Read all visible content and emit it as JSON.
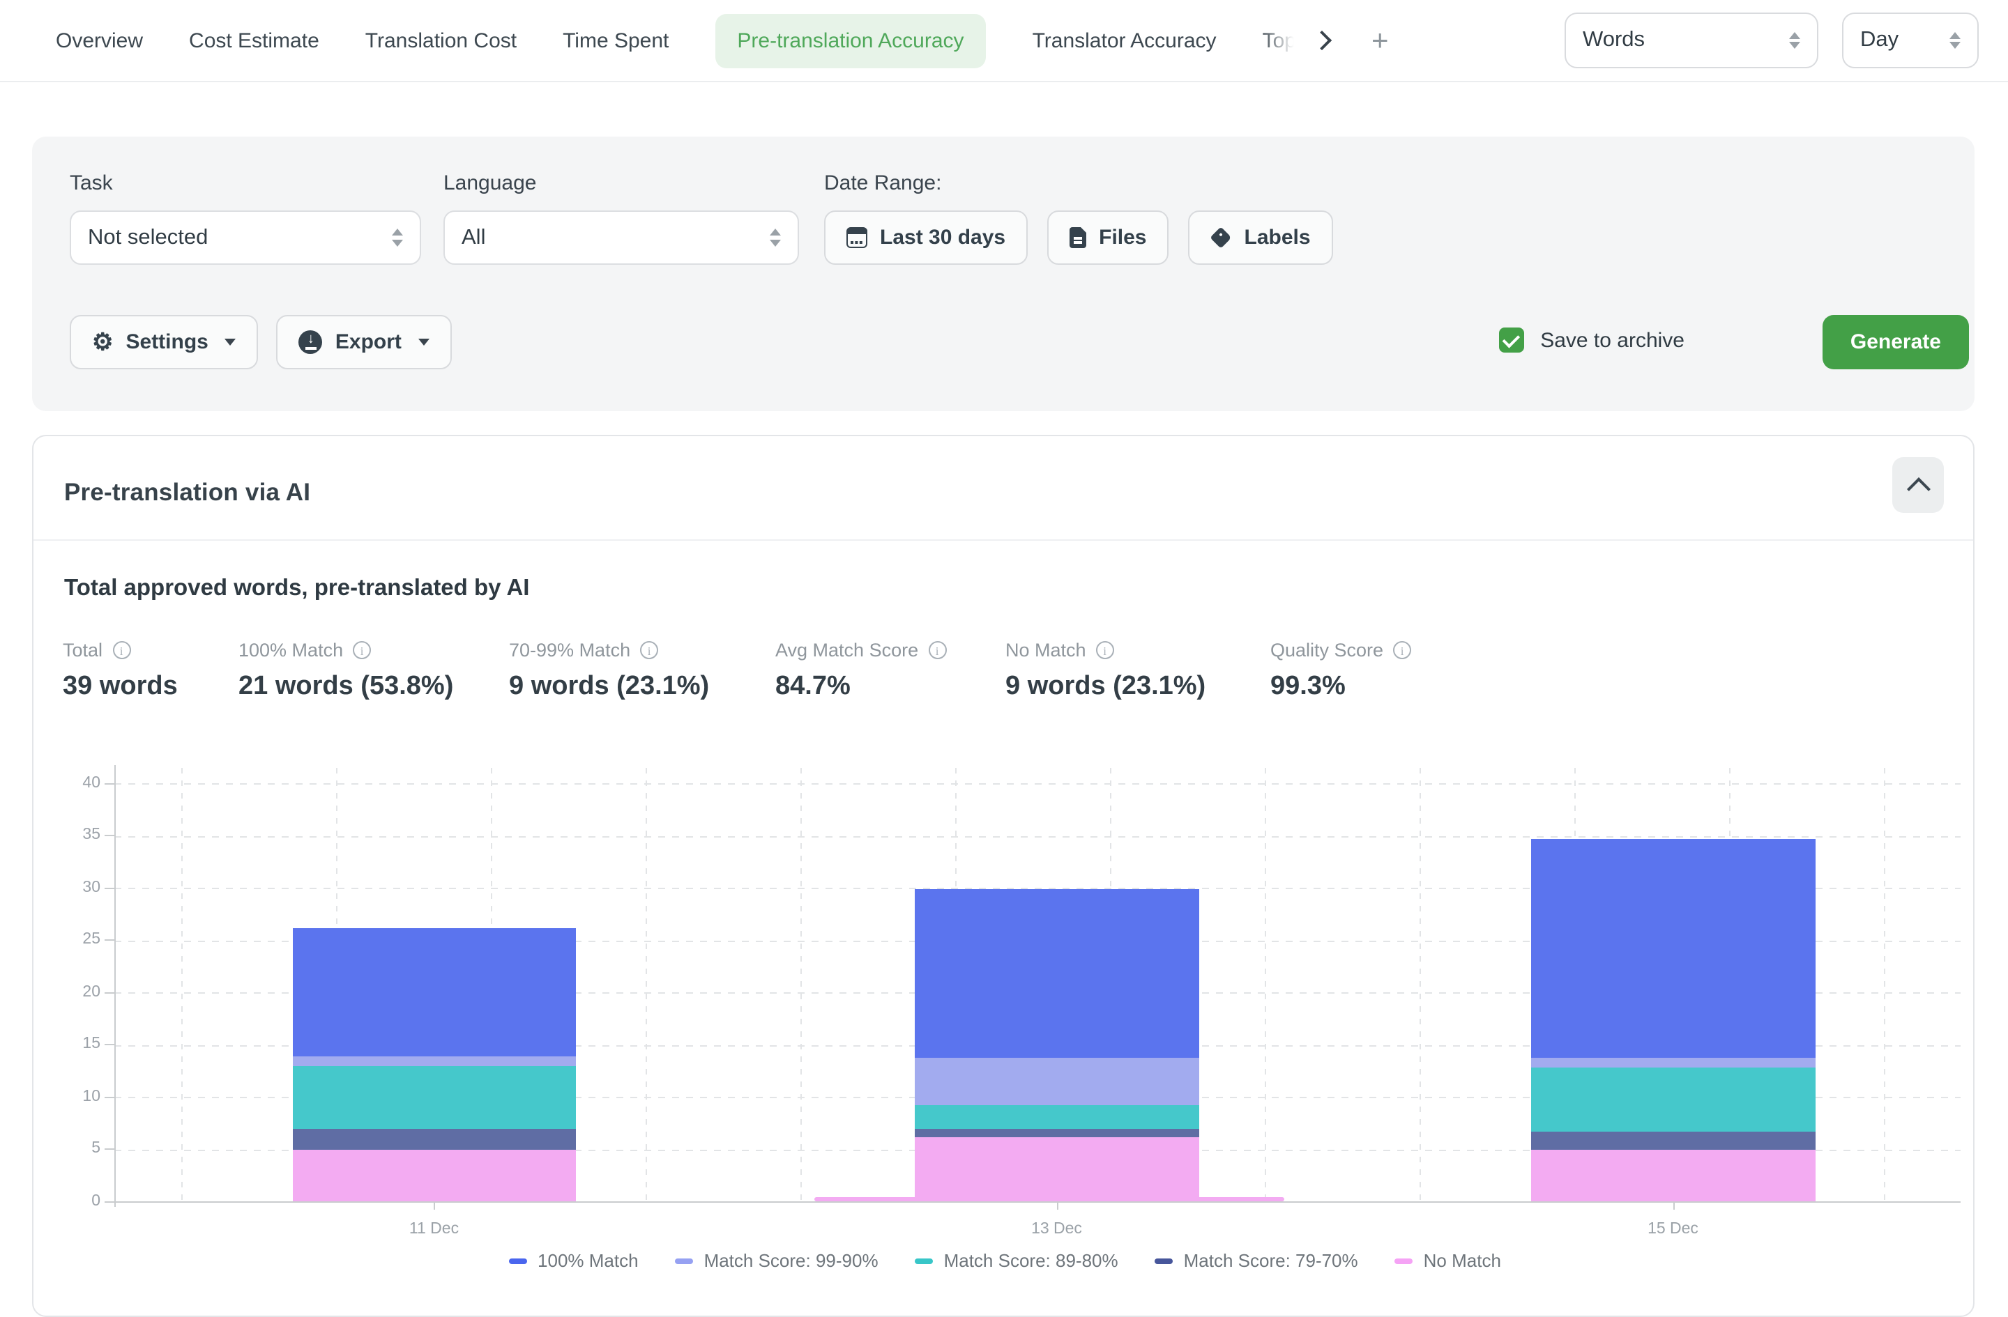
{
  "colors": {
    "accent_green": "#43a047",
    "active_tab_bg": "#e7f3e8",
    "active_tab_text": "#4fa85a",
    "panel_bg": "#f4f5f6",
    "card_border": "#e3e5e8"
  },
  "nav": {
    "tabs": [
      {
        "label": "Overview",
        "active": false
      },
      {
        "label": "Cost Estimate",
        "active": false
      },
      {
        "label": "Translation Cost",
        "active": false
      },
      {
        "label": "Time Spent",
        "active": false
      },
      {
        "label": "Pre-translation Accuracy",
        "active": true
      },
      {
        "label": "Translator Accuracy",
        "active": false
      },
      {
        "label": "Top",
        "active": false,
        "truncated": true
      }
    ],
    "scroll_icon": "chevron-right-icon",
    "add_icon": "plus-icon",
    "unit_select": {
      "value": "Words"
    },
    "period_select": {
      "value": "Day"
    }
  },
  "filters": {
    "task": {
      "label": "Task",
      "value": "Not selected"
    },
    "language": {
      "label": "Language",
      "value": "All"
    },
    "date_range": {
      "label": "Date Range:",
      "button_label": "Last 30 days",
      "icon": "calendar-icon"
    },
    "files_button": {
      "label": "Files",
      "icon": "file-icon"
    },
    "labels_button": {
      "label": "Labels",
      "icon": "tag-icon"
    },
    "settings_button": {
      "label": "Settings",
      "icon": "gear-icon"
    },
    "export_button": {
      "label": "Export",
      "icon": "download-circle-icon"
    },
    "save_to_archive": {
      "label": "Save to archive",
      "checked": true
    },
    "generate_button": {
      "label": "Generate"
    }
  },
  "report": {
    "title": "Pre-translation via AI",
    "collapse_icon": "chevron-up-icon",
    "subtitle": "Total approved words, pre-translated by AI",
    "stats": [
      {
        "label": "Total",
        "value": "39 words"
      },
      {
        "label": "100% Match",
        "value": "21 words (53.8%)"
      },
      {
        "label": "70-99% Match",
        "value": "9 words (23.1%)"
      },
      {
        "label": "Avg Match Score",
        "value": "84.7%"
      },
      {
        "label": "No Match",
        "value": "9 words (23.1%)"
      },
      {
        "label": "Quality Score",
        "value": "99.3%"
      }
    ]
  },
  "chart_data": {
    "type": "bar",
    "stacked": true,
    "title": "Total approved words, pre-translated by AI",
    "categories": [
      "11 Dec",
      "13 Dec",
      "15 Dec"
    ],
    "series": [
      {
        "name": "No Match",
        "color": "#f3abf2",
        "legend_color": "#f5a3f5",
        "values": [
          5,
          6.2,
          4.9
        ]
      },
      {
        "name": "Match Score: 79-70%",
        "color": "#5f6da4",
        "legend_color": "#47569b",
        "values": [
          2,
          0.7,
          1.8
        ]
      },
      {
        "name": "Match Score: 89-80%",
        "color": "#45c8cb",
        "legend_color": "#38c6c8",
        "values": [
          6,
          2.3,
          6.1
        ]
      },
      {
        "name": "Match Score: 99-90%",
        "color": "#a2abef",
        "legend_color": "#96a1f2",
        "values": [
          0.9,
          4.6,
          0.9
        ]
      },
      {
        "name": "100% Match",
        "color": "#5b74ee",
        "legend_color": "#4a66ee",
        "values": [
          12.3,
          16.1,
          21
        ]
      }
    ],
    "totals": [
      26.2,
      29.9,
      34.7
    ],
    "legend_order": [
      "100% Match",
      "Match Score: 99-90%",
      "Match Score: 89-80%",
      "Match Score: 79-70%",
      "No Match"
    ],
    "ylim": [
      0,
      40
    ],
    "yticks": [
      0,
      5,
      10,
      15,
      20,
      25,
      30,
      35,
      40
    ],
    "grid": "dashed",
    "legend_position": "bottom"
  }
}
